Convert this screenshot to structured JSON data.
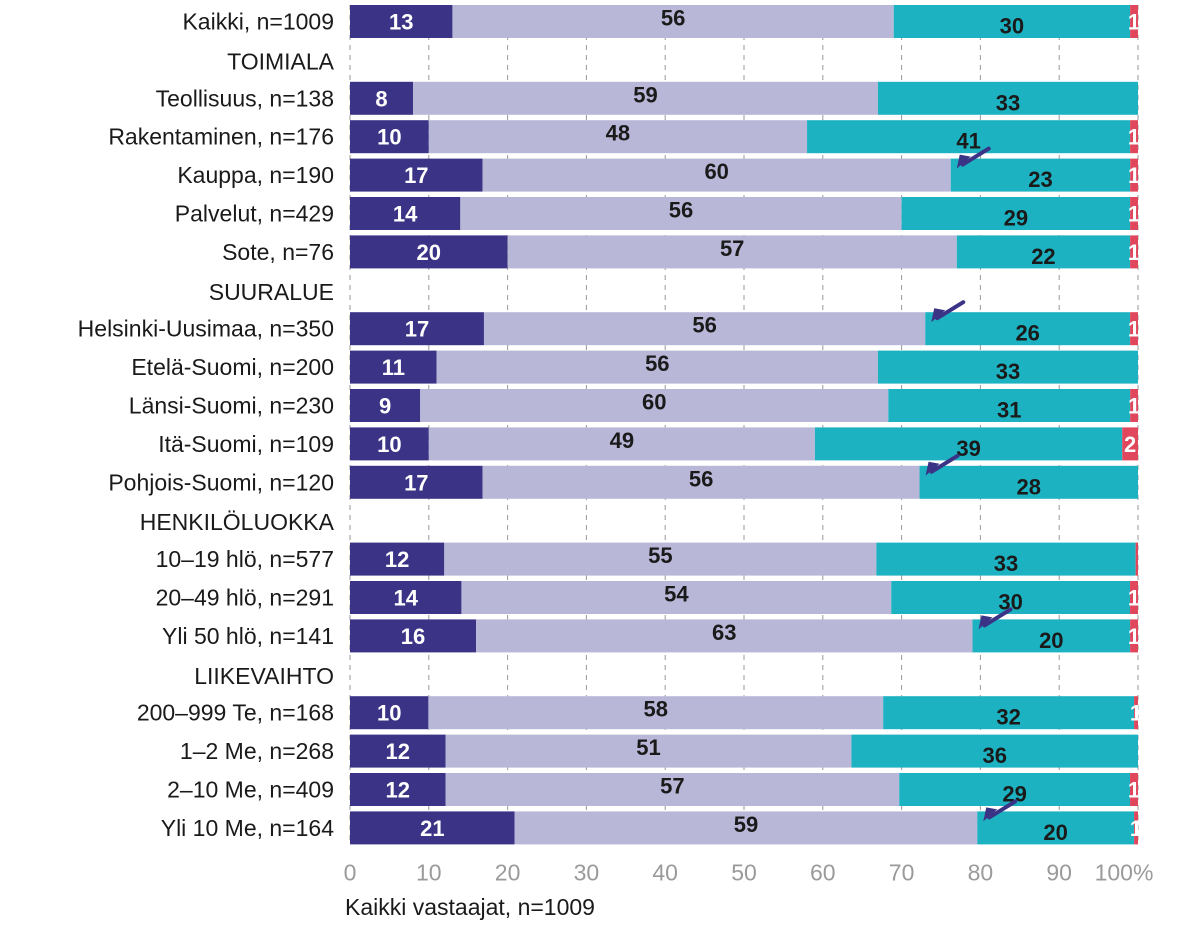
{
  "chart_data": {
    "type": "bar",
    "orientation": "horizontal",
    "stacked": true,
    "xlim": [
      0,
      100
    ],
    "x_ticks": [
      "0",
      "10",
      "20",
      "30",
      "40",
      "50",
      "60",
      "70",
      "80",
      "90",
      "100%"
    ],
    "grid": true,
    "footnote": "Kaikki vastaajat, n=1009",
    "series_colors": [
      "#3b3486",
      "#b9b7d8",
      "#1cb2c2",
      "#e0465c"
    ],
    "label_colors": [
      "#ffffff",
      "#1a1a1a",
      "#1a1a1a",
      "#ffffff"
    ],
    "rows": [
      {
        "label": "Kaikki, n=1009",
        "values": [
          13,
          56,
          30,
          1
        ],
        "labels": [
          "13",
          "56",
          "30",
          "1"
        ],
        "arrow": false
      },
      {
        "label": "TOIMIALA",
        "group": true
      },
      {
        "label": "Teollisuus, n=138",
        "values": [
          8,
          59,
          33,
          0
        ],
        "labels": [
          "8",
          "59",
          "33",
          ""
        ],
        "arrow": false
      },
      {
        "label": "Rakentaminen, n=176",
        "values": [
          10,
          48,
          41,
          1
        ],
        "labels": [
          "10",
          "48",
          "41",
          "1"
        ],
        "arrow": false
      },
      {
        "label": "Kauppa, n=190",
        "values": [
          17,
          60,
          23,
          1
        ],
        "labels": [
          "17",
          "60",
          "23",
          "1"
        ],
        "arrow": true
      },
      {
        "label": "Palvelut, n=429",
        "values": [
          14,
          56,
          29,
          1
        ],
        "labels": [
          "14",
          "56",
          "29",
          "1"
        ],
        "arrow": false
      },
      {
        "label": "Sote, n=76",
        "values": [
          20,
          57,
          22,
          1
        ],
        "labels": [
          "20",
          "57",
          "22",
          "1"
        ],
        "arrow": false
      },
      {
        "label": "SUURALUE",
        "group": true
      },
      {
        "label": "Helsinki-Uusimaa, n=350",
        "values": [
          17,
          56,
          26,
          1
        ],
        "labels": [
          "17",
          "56",
          "26",
          "1"
        ],
        "arrow": true
      },
      {
        "label": "Etelä-Suomi, n=200",
        "values": [
          11,
          56,
          33,
          0
        ],
        "labels": [
          "11",
          "56",
          "33",
          ""
        ],
        "arrow": false
      },
      {
        "label": "Länsi-Suomi, n=230",
        "values": [
          9,
          60,
          31,
          1
        ],
        "labels": [
          "9",
          "60",
          "31",
          "1"
        ],
        "arrow": false
      },
      {
        "label": "Itä-Suomi, n=109",
        "values": [
          10,
          49,
          39,
          2
        ],
        "labels": [
          "10",
          "49",
          "39",
          "2"
        ],
        "arrow": false
      },
      {
        "label": "Pohjois-Suomi, n=120",
        "values": [
          17,
          56,
          28,
          0
        ],
        "labels": [
          "17",
          "56",
          "28",
          ""
        ],
        "arrow": true
      },
      {
        "label": "HENKILÖLUOKKA",
        "group": true
      },
      {
        "label": "10–19 hlö, n=577",
        "values": [
          12,
          55,
          33,
          0.3
        ],
        "labels": [
          "12",
          "55",
          "33",
          ""
        ],
        "arrow": false
      },
      {
        "label": "20–49 hlö, n=291",
        "values": [
          14,
          54,
          30,
          1
        ],
        "labels": [
          "14",
          "54",
          "30",
          "1"
        ],
        "arrow": false
      },
      {
        "label": "Yli 50 hlö, n=141",
        "values": [
          16,
          63,
          20,
          1
        ],
        "labels": [
          "16",
          "63",
          "20",
          "1"
        ],
        "arrow": true
      },
      {
        "label": "LIIKEVAIHTO",
        "group": true
      },
      {
        "label": "200–999 Te, n=168",
        "values": [
          10,
          58,
          32,
          0.5
        ],
        "labels": [
          "10",
          "58",
          "32",
          "1"
        ],
        "arrow": false
      },
      {
        "label": "1–2  Me, n=268",
        "values": [
          12,
          51,
          36,
          0
        ],
        "labels": [
          "12",
          "51",
          "36",
          ""
        ],
        "arrow": false
      },
      {
        "label": "2–10 Me, n=409",
        "values": [
          12,
          57,
          29,
          1
        ],
        "labels": [
          "12",
          "57",
          "29",
          "1"
        ],
        "arrow": false
      },
      {
        "label": "Yli 10 Me, n=164",
        "values": [
          21,
          59,
          20,
          0.5
        ],
        "labels": [
          "21",
          "59",
          "20",
          "1"
        ],
        "arrow": true
      }
    ]
  }
}
